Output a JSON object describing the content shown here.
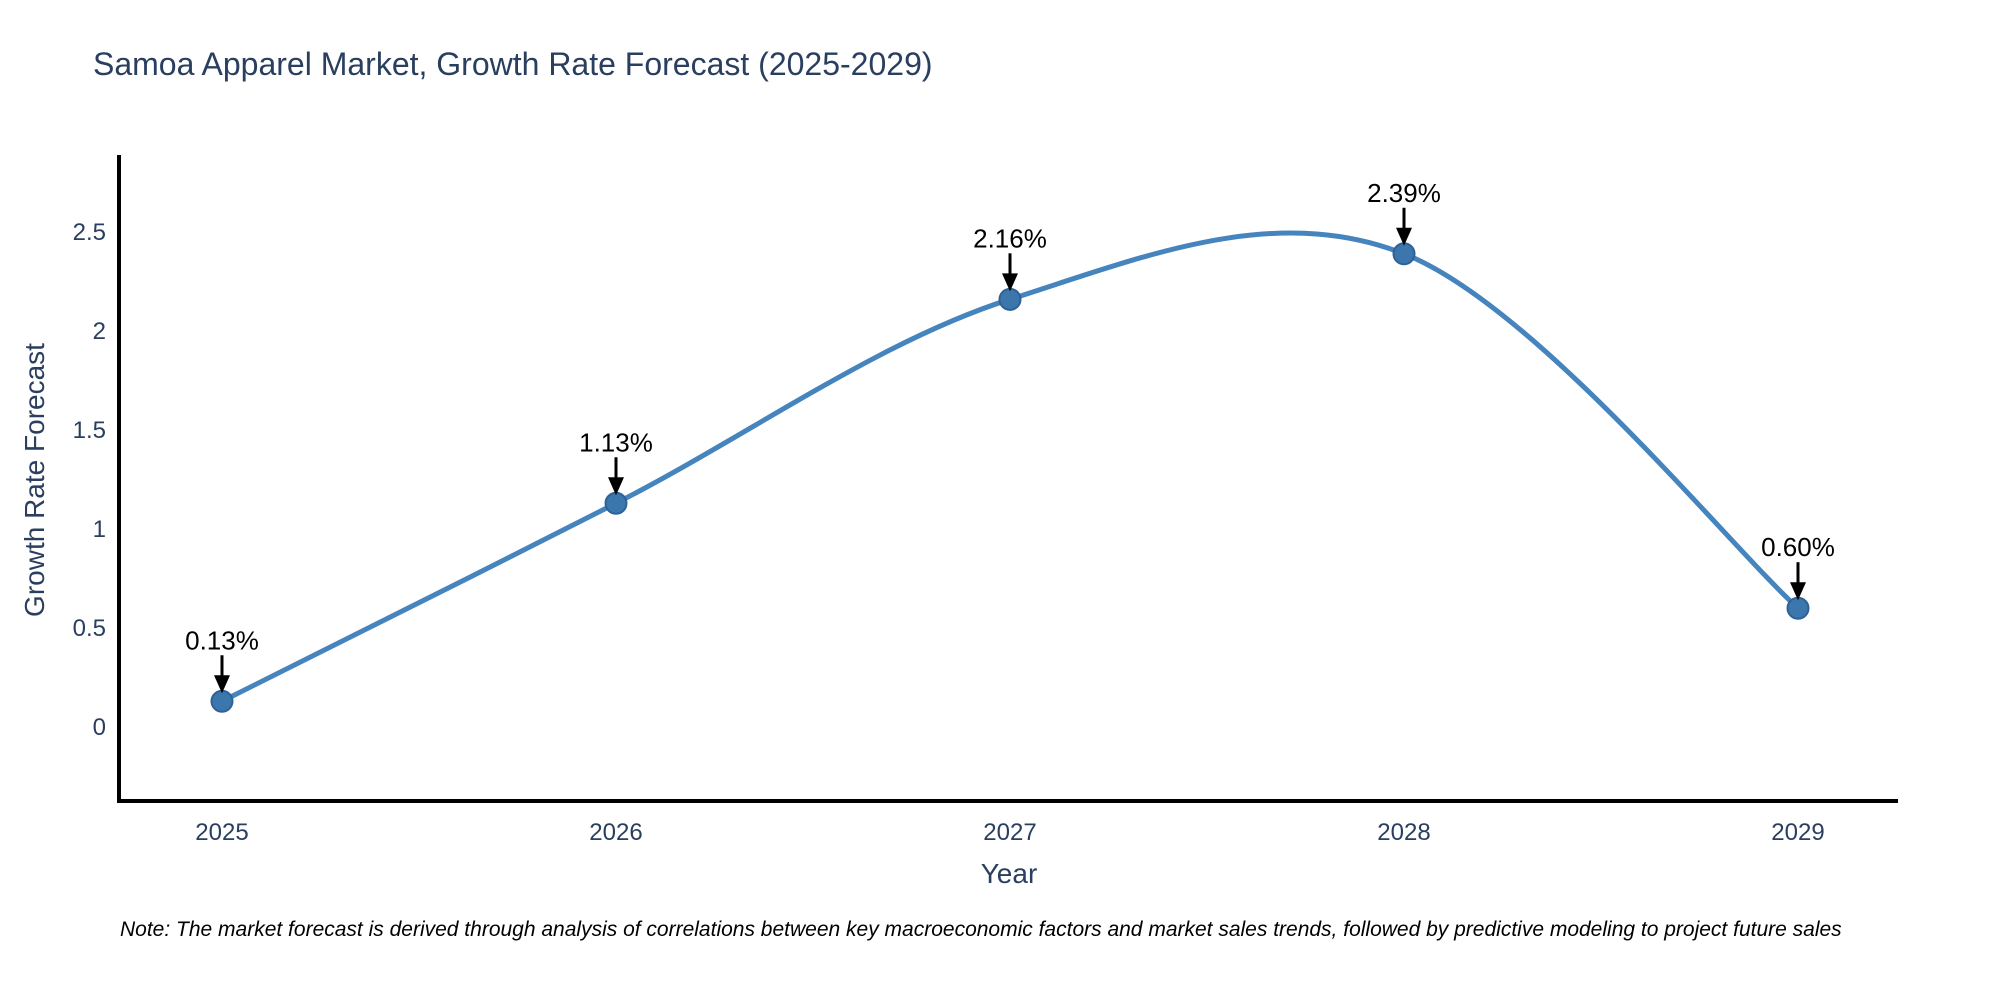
{
  "chart_data": {
    "type": "line",
    "title": "Samoa Apparel Market, Growth Rate Forecast (2025-2029)",
    "xlabel": "Year",
    "ylabel": "Growth Rate Forecast",
    "x": [
      2025,
      2026,
      2027,
      2028,
      2029
    ],
    "xtick_labels": [
      "2025",
      "2026",
      "2027",
      "2028",
      "2029"
    ],
    "values": [
      0.13,
      1.13,
      2.16,
      2.39,
      0.6
    ],
    "point_labels": [
      "0.13%",
      "1.13%",
      "2.16%",
      "2.39%",
      "0.60%"
    ],
    "yticks": [
      0,
      0.5,
      1,
      1.5,
      2,
      2.5
    ],
    "ytick_labels": [
      "0",
      "0.5",
      "1",
      "1.5",
      "2",
      "2.5"
    ],
    "ylim": [
      -0.37,
      2.9
    ],
    "line_shape": "spline",
    "grid": false,
    "legend_position": "none",
    "colors": {
      "line": "#4584bd",
      "marker": "#3b76ad",
      "marker_border": "#2e6296",
      "axis_line": "#000000",
      "axis_text": "#2a3f5f",
      "annotation_text": "#000000",
      "annotation_arrow": "#000000",
      "background": "#ffffff"
    }
  },
  "note": {
    "text": "Note: The market forecast is derived through analysis of correlations between key macroeconomic factors and market sales trends, followed by predictive modeling to project future sales"
  }
}
